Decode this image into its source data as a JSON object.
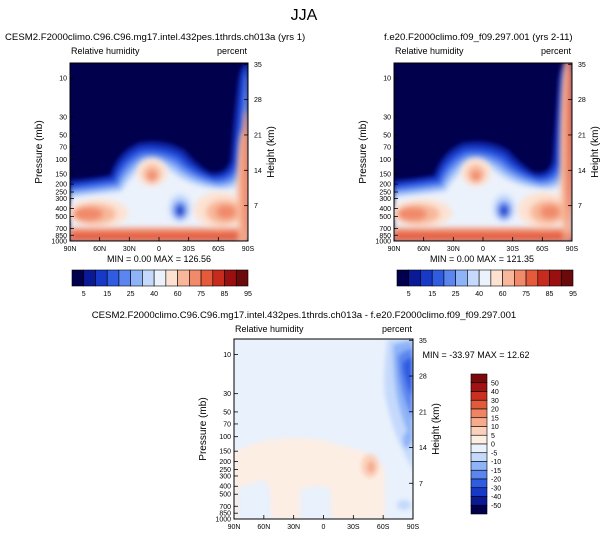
{
  "figure_title": "JJA",
  "colors": {
    "cbar_main": [
      "#00004d",
      "#0a1a96",
      "#1839c7",
      "#2f5ce0",
      "#5b86ef",
      "#8eb3f7",
      "#c4d9fb",
      "#ecf2fc",
      "#fde2d2",
      "#f8b79a",
      "#f08a6a",
      "#e45a3b",
      "#c72b1e",
      "#9a1010",
      "#6b0a0a"
    ],
    "cbar_diff": [
      "#00004d",
      "#0a1a96",
      "#1839c7",
      "#2f5ce0",
      "#5b86ef",
      "#8eb3f7",
      "#c4d9fb",
      "#e8f1fc",
      "#fdeee4",
      "#fbd1bc",
      "#f6ab8e",
      "#ee8461",
      "#e25a3c",
      "#c9301f",
      "#a31212",
      "#7a0a0a"
    ]
  },
  "chart_data": [
    {
      "type": "heatmap",
      "title": "CESM2.F2000climo.C96.C96.mg17.intel.432pes.1thrds.ch013a (yrs 1)",
      "left_label": "Relative humidity",
      "right_label": "percent",
      "xlabel": "",
      "ylabel": "Pressure (mb)",
      "ylabel_right": "Height (km)",
      "x_ticks": [
        "90N",
        "60N",
        "30N",
        "0",
        "30S",
        "60S",
        "90S"
      ],
      "y_ticks": [
        "10",
        "30",
        "50",
        "70",
        "100",
        "150",
        "200",
        "250",
        "300",
        "400",
        "500",
        "700",
        "850",
        "1000"
      ],
      "y_right_ticks": [
        "35",
        "28",
        "21",
        "14",
        "7"
      ],
      "stats": "MIN =   0.00  MAX = 126.56",
      "colorbar_levels": [
        "5",
        "15",
        "25",
        "40",
        "60",
        "75",
        "85",
        "95"
      ],
      "field": "main"
    },
    {
      "type": "heatmap",
      "title": "f.e20.F2000climo.f09_f09.297.001 (yrs 2-11)",
      "left_label": "Relative humidity",
      "right_label": "percent",
      "xlabel": "",
      "ylabel": "Pressure (mb)",
      "ylabel_right": "Height (km)",
      "x_ticks": [
        "90N",
        "60N",
        "30N",
        "0",
        "30S",
        "60S",
        "90S"
      ],
      "y_ticks": [
        "10",
        "30",
        "50",
        "70",
        "100",
        "150",
        "200",
        "250",
        "300",
        "400",
        "500",
        "700",
        "850",
        "1000"
      ],
      "y_right_ticks": [
        "35",
        "28",
        "21",
        "14",
        "7"
      ],
      "stats": "MIN =   0.00  MAX = 121.35",
      "colorbar_levels": [
        "5",
        "15",
        "25",
        "40",
        "60",
        "75",
        "85",
        "95"
      ],
      "field": "main"
    },
    {
      "type": "heatmap",
      "title": "CESM2.F2000climo.C96.C96.mg17.intel.432pes.1thrds.ch013a - f.e20.F2000climo.f09_f09.297.001",
      "left_label": "Relative humidity",
      "right_label": "percent",
      "xlabel": "",
      "ylabel": "Pressure (mb)",
      "ylabel_right": "Height (km)",
      "x_ticks": [
        "90N",
        "60N",
        "30N",
        "0",
        "30S",
        "60S",
        "90S"
      ],
      "y_ticks": [
        "10",
        "30",
        "50",
        "70",
        "100",
        "150",
        "200",
        "250",
        "300",
        "400",
        "500",
        "700",
        "850",
        "1000"
      ],
      "y_right_ticks": [
        "35",
        "28",
        "21",
        "14",
        "7"
      ],
      "stats": "MIN = -33.97  MAX =  12.62",
      "colorbar_levels": [
        "50",
        "40",
        "30",
        "20",
        "15",
        "10",
        "5",
        "0",
        "-5",
        "-10",
        "-15",
        "-20",
        "-30",
        "-40",
        "-50"
      ],
      "field": "diff"
    }
  ]
}
